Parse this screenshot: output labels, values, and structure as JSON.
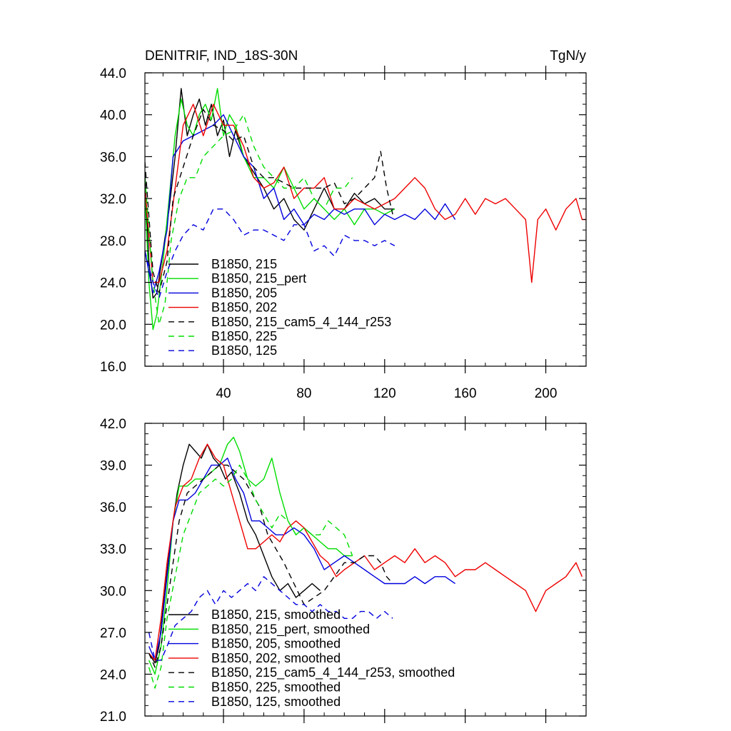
{
  "chart_data": [
    {
      "type": "line",
      "title": "DENITRIF, IND_18S-30N",
      "units": "TgN/y",
      "xlim": [
        1,
        220
      ],
      "ylim": [
        16,
        44
      ],
      "xticks": [
        40,
        80,
        120,
        160,
        200
      ],
      "yticks": [
        16,
        20,
        24,
        28,
        32,
        36,
        40,
        44
      ],
      "ytick_format": 1,
      "legend_position": "lower-left",
      "series": [
        {
          "name": "B1850, 215",
          "color": "#000000",
          "dash": "solid",
          "x": [
            1,
            3,
            5,
            7,
            10,
            13,
            16,
            19,
            22,
            25,
            28,
            31,
            34,
            37,
            40,
            43,
            46,
            50,
            55,
            60,
            65,
            70,
            75,
            80,
            85,
            90,
            95,
            100,
            105,
            110,
            115,
            120,
            125
          ],
          "y": [
            34.5,
            26,
            22.5,
            23,
            27,
            31,
            36,
            42.5,
            38,
            40,
            41.5,
            39,
            41,
            38,
            39.5,
            36,
            38.5,
            36,
            34.5,
            33,
            31,
            32,
            30,
            29,
            31,
            33,
            31,
            31,
            32.5,
            31.5,
            32,
            31,
            31
          ]
        },
        {
          "name": "B1850, 215_pert",
          "color": "#00dd00",
          "dash": "solid",
          "x": [
            1,
            3,
            5,
            7,
            10,
            13,
            16,
            19,
            22,
            25,
            28,
            31,
            34,
            37,
            40,
            43,
            46,
            50,
            55,
            60,
            65,
            70,
            75,
            80,
            85,
            90,
            95,
            100,
            105,
            110,
            115,
            120,
            125
          ],
          "y": [
            32.5,
            24,
            19.5,
            21,
            26,
            32,
            38,
            41.5,
            39,
            38,
            40,
            41,
            39.5,
            42.5,
            38,
            40,
            39,
            36,
            34,
            34,
            33,
            35,
            33,
            31,
            32,
            31,
            30,
            31,
            29.5,
            31,
            31,
            30.5,
            31
          ]
        },
        {
          "name": "B1850, 205",
          "color": "#0000dd",
          "dash": "solid",
          "x": [
            1,
            5,
            8,
            12,
            15,
            20,
            25,
            30,
            35,
            40,
            45,
            50,
            55,
            60,
            65,
            70,
            75,
            80,
            85,
            90,
            95,
            100,
            105,
            110,
            115,
            120,
            125,
            130,
            135,
            140,
            145,
            150,
            155
          ],
          "y": [
            27,
            23,
            25,
            29,
            36,
            37.5,
            38,
            38.5,
            39,
            40,
            38,
            36,
            35,
            32,
            33,
            30,
            31,
            29.5,
            30.5,
            30,
            31,
            30.5,
            31,
            31,
            29.5,
            30.5,
            30,
            30.5,
            30,
            31,
            30,
            31.5,
            30
          ]
        },
        {
          "name": "B1850, 202",
          "color": "#ee0000",
          "dash": "solid",
          "x": [
            1,
            5,
            8,
            12,
            16,
            20,
            25,
            30,
            35,
            40,
            45,
            50,
            55,
            60,
            65,
            70,
            75,
            80,
            85,
            90,
            95,
            100,
            105,
            110,
            115,
            120,
            125,
            130,
            135,
            140,
            145,
            150,
            155,
            160,
            165,
            170,
            175,
            180,
            185,
            190,
            193,
            196,
            200,
            205,
            210,
            215,
            218,
            220
          ],
          "y": [
            33,
            24,
            24,
            27,
            33,
            39,
            41,
            38,
            41,
            39,
            39,
            37,
            34,
            33,
            33.5,
            35,
            32,
            33,
            33,
            34,
            31,
            31,
            32,
            31.5,
            31,
            31.5,
            32,
            33,
            34,
            33,
            31,
            30,
            30.5,
            32,
            30.5,
            32,
            31.5,
            32,
            31,
            30,
            24,
            30,
            31,
            29,
            31,
            32,
            30,
            30
          ]
        },
        {
          "name": "B1850, 215_cam5_4_144_r253",
          "color": "#000000",
          "dash": "8,6",
          "x": [
            1,
            5,
            8,
            12,
            15,
            20,
            25,
            30,
            35,
            40,
            45,
            50,
            55,
            60,
            65,
            70,
            75,
            80,
            85,
            90,
            95,
            100,
            105,
            110,
            115,
            118,
            121,
            124
          ],
          "y": [
            35.5,
            25,
            23,
            26,
            32,
            35,
            38,
            40.5,
            39,
            38.5,
            37.5,
            38,
            35,
            34,
            34,
            33.5,
            33,
            33,
            33,
            33,
            33.5,
            31.5,
            32,
            33,
            34,
            36.5,
            33,
            30.5
          ]
        },
        {
          "name": "B1850, 225",
          "color": "#00dd00",
          "dash": "8,6",
          "x": [
            1,
            5,
            8,
            11,
            14,
            18,
            22,
            26,
            30,
            35,
            40,
            45,
            50,
            55,
            60,
            65,
            70,
            75,
            80,
            85,
            90,
            95,
            100,
            104
          ],
          "y": [
            34,
            24,
            20,
            22,
            28,
            32,
            34,
            34,
            36,
            37,
            38,
            38.5,
            40,
            37,
            35,
            34,
            33,
            33,
            34,
            32,
            31,
            33,
            33,
            34
          ]
        },
        {
          "name": "B1850, 125",
          "color": "#0000dd",
          "dash": "8,6",
          "x": [
            1,
            5,
            8,
            12,
            16,
            20,
            25,
            30,
            35,
            40,
            45,
            50,
            55,
            60,
            65,
            70,
            75,
            80,
            85,
            90,
            95,
            100,
            105,
            110,
            115,
            120,
            125
          ],
          "y": [
            27,
            24,
            22.5,
            25,
            27,
            28.5,
            29.5,
            29,
            31,
            31,
            30,
            28.5,
            29,
            29,
            28.5,
            28,
            29.5,
            29.5,
            27,
            27.5,
            26.5,
            28.5,
            28,
            28,
            27.5,
            28,
            27.5
          ]
        }
      ]
    },
    {
      "type": "line",
      "title": "",
      "xlim": [
        1,
        220
      ],
      "ylim": [
        21,
        42
      ],
      "xticks": [
        40,
        80,
        120,
        160,
        200
      ],
      "yticks": [
        21,
        24,
        27,
        30,
        33,
        36,
        39,
        42
      ],
      "ytick_format": 1,
      "legend_position": "lower-left",
      "series": [
        {
          "name": "B1850, 215, smoothed",
          "color": "#000000",
          "dash": "solid",
          "x": [
            3,
            6,
            8,
            11,
            14,
            17,
            20,
            23,
            26,
            29,
            32,
            35,
            38,
            41,
            44,
            48,
            52,
            56,
            60,
            64,
            68,
            72,
            76,
            80,
            84,
            88
          ],
          "y": [
            25.5,
            24.8,
            26,
            30,
            34,
            37,
            39,
            40.5,
            40,
            39.5,
            40.5,
            39.5,
            39,
            38,
            38.5,
            37,
            35,
            34,
            32.5,
            31,
            30,
            30.5,
            29.5,
            30,
            30.5,
            30
          ]
        },
        {
          "name": "B1850, 215_pert, smoothed",
          "color": "#00dd00",
          "dash": "solid",
          "x": [
            3,
            6,
            9,
            12,
            15,
            18,
            22,
            26,
            30,
            34,
            38,
            42,
            45,
            48,
            52,
            56,
            60,
            64,
            68,
            72,
            76,
            80,
            84,
            88,
            92,
            96,
            100,
            104
          ],
          "y": [
            25,
            24,
            26,
            30,
            35,
            37.5,
            37.5,
            38,
            38,
            38.5,
            39,
            40.5,
            41,
            40,
            38,
            37.5,
            38,
            39.5,
            37,
            35,
            34,
            34.5,
            34,
            33.5,
            33,
            33,
            32.5,
            32.5
          ]
        },
        {
          "name": "B1850, 205, smoothed",
          "color": "#0000dd",
          "dash": "solid",
          "x": [
            3,
            6,
            9,
            12,
            15,
            18,
            22,
            26,
            30,
            34,
            38,
            42,
            46,
            50,
            54,
            58,
            62,
            66,
            70,
            75,
            80,
            85,
            90,
            95,
            100,
            105,
            110,
            115,
            120,
            125,
            130,
            135,
            140,
            145,
            150,
            155
          ],
          "y": [
            26,
            25,
            27,
            31,
            35,
            36.5,
            36.5,
            37,
            38,
            39,
            39,
            39.5,
            38,
            37,
            35,
            35,
            34.5,
            34,
            34,
            34.5,
            34,
            33,
            31.5,
            32,
            32.5,
            32,
            31.5,
            31,
            30.5,
            30.5,
            30.5,
            31,
            30.5,
            31,
            31,
            30.5
          ]
        },
        {
          "name": "B1850, 202, smoothed",
          "color": "#ee0000",
          "dash": "solid",
          "x": [
            3,
            6,
            9,
            12,
            16,
            20,
            24,
            28,
            32,
            36,
            40,
            44,
            48,
            52,
            56,
            60,
            64,
            68,
            72,
            76,
            80,
            84,
            88,
            92,
            96,
            100,
            105,
            110,
            115,
            120,
            125,
            130,
            135,
            140,
            145,
            150,
            155,
            160,
            165,
            170,
            175,
            180,
            185,
            190,
            195,
            200,
            205,
            210,
            215,
            218
          ],
          "y": [
            25.5,
            25,
            28,
            32,
            36,
            37.5,
            38,
            39.5,
            40.5,
            39.5,
            39,
            37,
            35,
            33,
            33,
            33.5,
            34,
            33.5,
            34.5,
            35,
            34.5,
            33.5,
            32.5,
            32,
            31,
            31.5,
            32,
            32.5,
            31.5,
            32,
            32.5,
            32,
            33,
            32,
            32.5,
            32,
            31,
            31.5,
            31.5,
            32,
            31.5,
            31,
            30.5,
            30,
            28.5,
            30,
            30.5,
            31,
            32,
            31
          ]
        },
        {
          "name": "B1850, 215_cam5_4_144_r253, smoothed",
          "color": "#000000",
          "dash": "8,6",
          "x": [
            3,
            6,
            9,
            12,
            15,
            18,
            22,
            26,
            30,
            34,
            38,
            42,
            46,
            50,
            54,
            58,
            62,
            66,
            70,
            75,
            80,
            85,
            90,
            95,
            100,
            105,
            110,
            115,
            118,
            121,
            124
          ],
          "y": [
            25.5,
            24.5,
            26,
            29,
            32,
            35,
            37,
            37.5,
            38,
            38.5,
            39,
            39,
            38.5,
            38,
            37,
            36,
            34,
            33,
            32,
            30.5,
            29,
            29.5,
            30,
            31,
            32,
            32,
            32.5,
            32.5,
            32,
            31,
            30.5
          ]
        },
        {
          "name": "B1850, 225, smoothed",
          "color": "#00dd00",
          "dash": "8,6",
          "x": [
            3,
            6,
            9,
            12,
            16,
            20,
            24,
            28,
            32,
            36,
            40,
            44,
            48,
            52,
            56,
            60,
            64,
            68,
            72,
            76,
            80,
            84,
            88,
            92,
            96,
            100,
            104
          ],
          "y": [
            24.5,
            23,
            24.5,
            28,
            31,
            34,
            35.5,
            37,
            37.5,
            38,
            37.5,
            38,
            39,
            38,
            36.5,
            35.5,
            34.5,
            35.5,
            35,
            34,
            34.5,
            34,
            34,
            35,
            34.5,
            34,
            32.5
          ]
        },
        {
          "name": "B1850, 125, smoothed",
          "color": "#0000dd",
          "dash": "8,6",
          "x": [
            3,
            6,
            9,
            12,
            16,
            20,
            24,
            28,
            32,
            36,
            40,
            44,
            48,
            52,
            56,
            60,
            64,
            68,
            72,
            76,
            80,
            84,
            88,
            92,
            96,
            100,
            104,
            108,
            112,
            116,
            120,
            124
          ],
          "y": [
            27,
            25,
            25,
            26,
            27.5,
            28,
            28.5,
            29.5,
            30,
            29,
            30,
            29.5,
            30,
            30.5,
            30,
            31,
            30.5,
            30,
            29.5,
            29,
            29,
            28.5,
            29,
            28.5,
            28.5,
            28,
            28,
            28.5,
            28.5,
            28,
            28.5,
            28
          ]
        }
      ]
    }
  ]
}
